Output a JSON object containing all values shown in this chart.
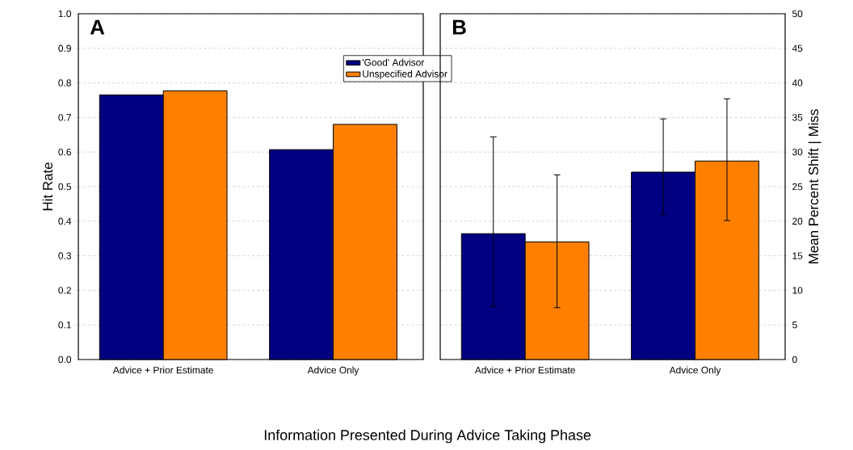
{
  "chart_data": [
    {
      "type": "bar",
      "title": "A",
      "xlabel": "Information Presented During Advice Taking Phase",
      "ylabel": "Hit Rate",
      "categories": [
        "Advice + Prior Estimate",
        "Advice Only"
      ],
      "series": [
        {
          "name": "'Good' Advisor",
          "color": "#000080",
          "values": [
            0.765,
            0.607
          ]
        },
        {
          "name": "Unspecified Advisor",
          "color": "#ff8000",
          "values": [
            0.777,
            0.68
          ]
        }
      ],
      "ylim": [
        0,
        1
      ],
      "yticks": [
        {
          "value": 0,
          "label": "0.0"
        },
        0.1,
        0.2,
        0.3,
        0.4,
        0.5,
        0.6,
        0.7,
        0.8,
        0.9,
        {
          "value": 1,
          "label": "1.0"
        }
      ],
      "grid": "y",
      "legend": "top right"
    },
    {
      "type": "bar",
      "title": "B",
      "ylabel": "Mean Percent Shift | Miss",
      "categories": [
        "Advice + Prior Estimate",
        "Advice Only"
      ],
      "series": [
        {
          "color": "#000080",
          "values": [
            18.2,
            27.1
          ],
          "errors": [
            [
              7.7,
              32.2
            ],
            [
              21.0,
              34.8
            ]
          ]
        },
        {
          "color": "#ff8000",
          "values": [
            17.0,
            28.7
          ],
          "errors": [
            [
              7.5,
              26.7
            ],
            [
              20.1,
              37.7
            ]
          ]
        }
      ],
      "ylim": [
        0,
        50
      ],
      "yticks": [
        0,
        5,
        10,
        15,
        20,
        25,
        30,
        35,
        40,
        45,
        50
      ],
      "grid": "y",
      "legend": false
    }
  ]
}
